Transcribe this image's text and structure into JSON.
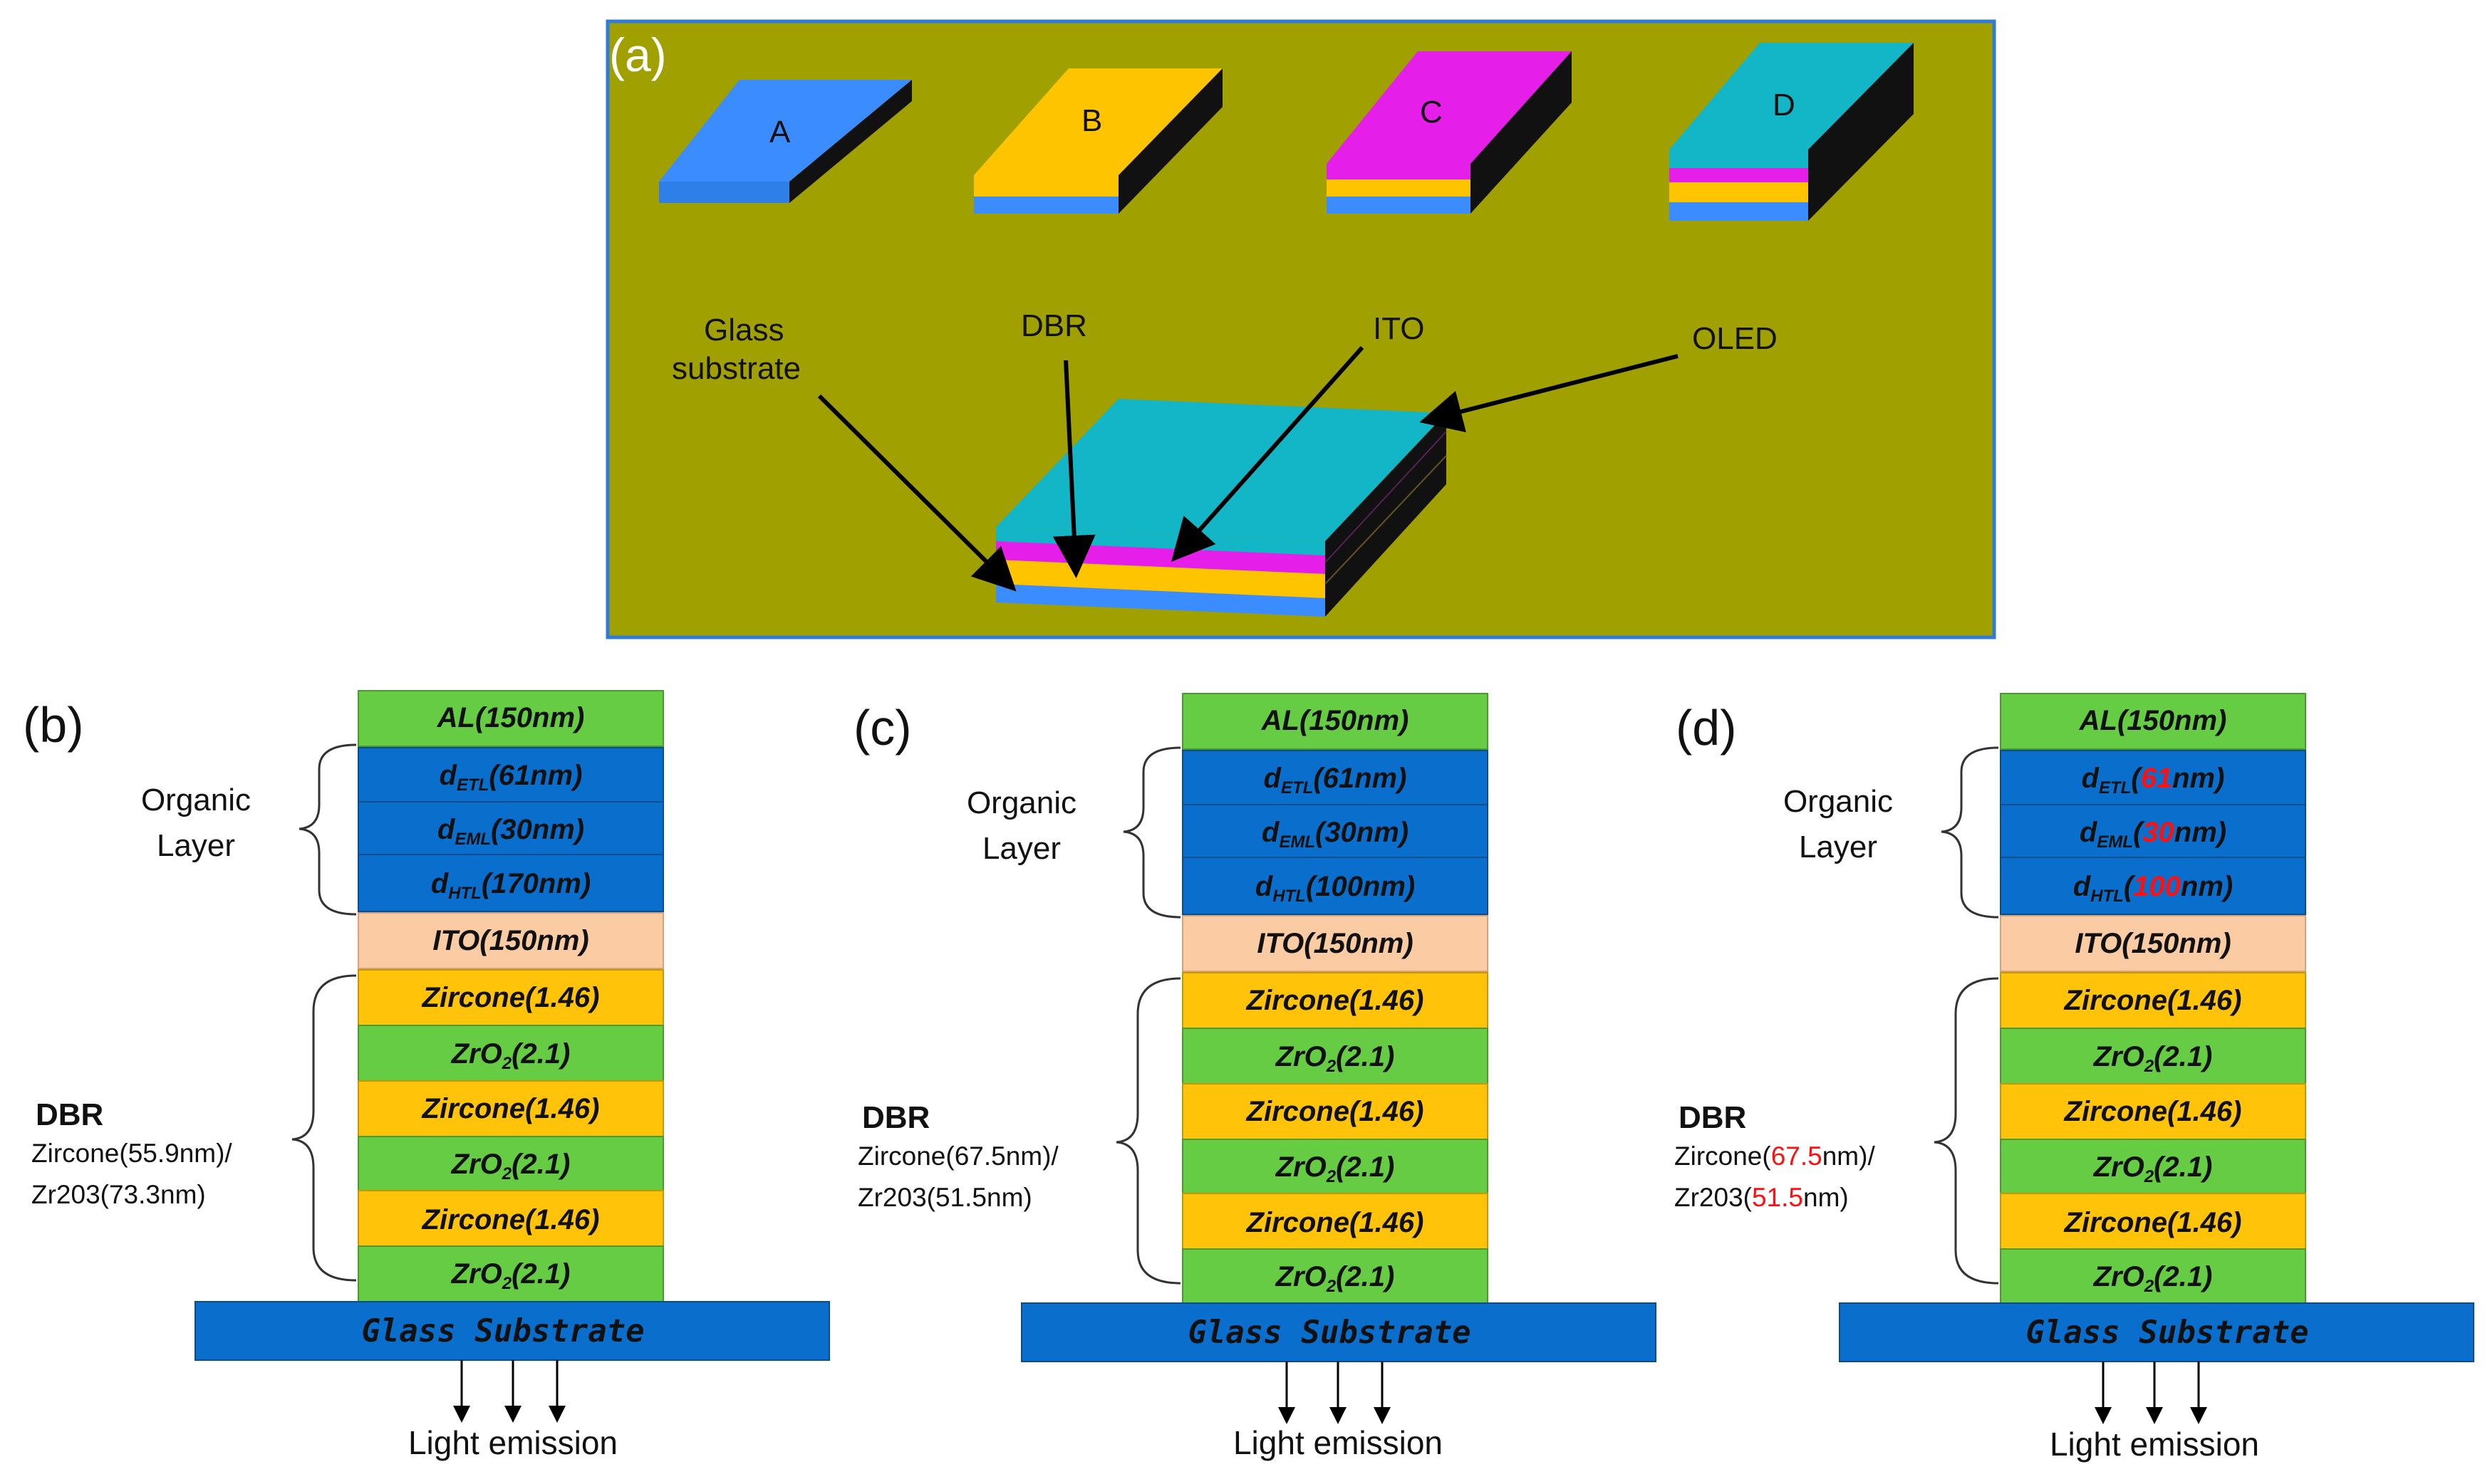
{
  "colors": {
    "background_a": "#a0a000",
    "frame_a": "#2f7bd6",
    "blue_layer": "#3a8cff",
    "yellow_layer": "#ffc400",
    "magenta_layer": "#e51ee9",
    "cyan_layer": "#12b6c6",
    "al_green": "#66cc44",
    "organic_blue": "#0a6fcc",
    "ito_peach": "#fbcca4",
    "zircone_yellow": "#ffc30a",
    "zro2_green": "#66cc44",
    "glass_blue": "#0a6fcc",
    "highlight_red": "#ff1010"
  },
  "panel_a": {
    "letter": "(a)",
    "devices": [
      "A",
      "B",
      "C",
      "D"
    ],
    "glass_label_line1": "Glass",
    "glass_label_line2": "substrate",
    "dbr_label": "DBR",
    "ito_label": "ITO",
    "oled_label": "OLED"
  },
  "panels": [
    {
      "letter": "(b)",
      "layers": {
        "al": "AL(150nm)",
        "etl": "(61nm)",
        "eml": "(30nm)",
        "htl": "(170nm)",
        "ito": "ITO(150nm)",
        "zircone": "Zircone(1.46)",
        "zro2": "(2.1)"
      },
      "glass": "Glass Substrate",
      "organic_line1": "Organic",
      "organic_line2": "Layer",
      "dbr_title": "DBR",
      "dbr_line1": "Zircone(55.9nm)/",
      "dbr_line2": "Zr203(73.3nm)",
      "light": "Light emission"
    },
    {
      "letter": "(c)",
      "layers": {
        "al": "AL(150nm)",
        "etl": "(61nm)",
        "eml": "(30nm)",
        "htl": "(100nm)",
        "ito": "ITO(150nm)",
        "zircone": "Zircone(1.46)",
        "zro2": "(2.1)"
      },
      "glass": "Glass Substrate",
      "organic_line1": "Organic",
      "organic_line2": "Layer",
      "dbr_title": "DBR",
      "dbr_line1": "Zircone(67.5nm)/",
      "dbr_line2": "Zr203(51.5nm)",
      "light": "Light emission"
    },
    {
      "letter": "(d)",
      "layers": {
        "al": "AL(150nm)",
        "etl_pre": "(",
        "etl_val": "61",
        "etl_post": "nm)",
        "eml_pre": "(",
        "eml_val": "30",
        "eml_post": "nm)",
        "htl_pre": "(",
        "htl_val": "100",
        "htl_post": "nm)",
        "ito": "ITO(150nm)",
        "zircone": "Zircone(1.46)",
        "zro2": "(2.1)"
      },
      "glass": "Glass Substrate",
      "organic_line1": "Organic",
      "organic_line2": "Layer",
      "dbr_title": "DBR",
      "dbr1_pre": "Zircone(",
      "dbr1_val": "67.5",
      "dbr1_post": "nm)/",
      "dbr2_pre": "Zr203(",
      "dbr2_val": "51.5",
      "dbr2_post": "nm)",
      "light": "Light emission"
    }
  ],
  "symbols": {
    "d": "d",
    "etl_sub": "ETL",
    "eml_sub": "EML",
    "htl_sub": "HTL",
    "zr": "ZrO",
    "two": "2"
  }
}
